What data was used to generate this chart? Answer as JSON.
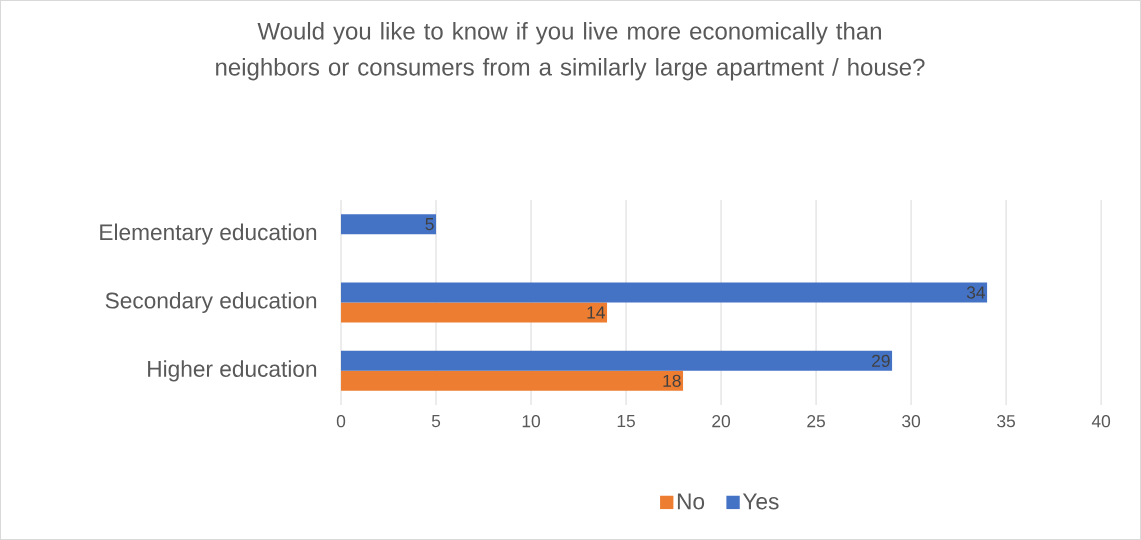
{
  "chart_data": {
    "type": "bar",
    "orientation": "horizontal",
    "title": "Would you like to know if you live more economically than neighbors or consumers from a similarly large apartment / house?",
    "categories": [
      "Elementary education",
      "Secondary education",
      "Higher education"
    ],
    "series": [
      {
        "name": "No",
        "color": "#ed7d31",
        "values": [
          null,
          14,
          18
        ]
      },
      {
        "name": "Yes",
        "color": "#4472c4",
        "values": [
          5,
          34,
          29
        ]
      }
    ],
    "xlim": [
      0,
      40
    ],
    "xticks": [
      0,
      5,
      10,
      15,
      20,
      25,
      30,
      35,
      40
    ],
    "grid": "x",
    "legend": "bottom",
    "data_labels": true
  }
}
